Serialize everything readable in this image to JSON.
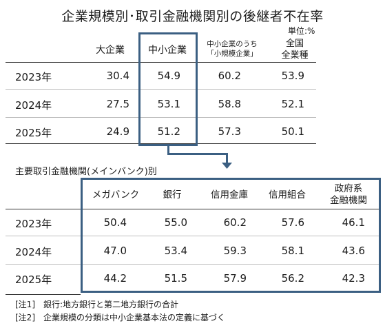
{
  "title": "企業規模別･取引金融機関別の後継者不在率",
  "unit": "単位:%",
  "table1": {
    "columns": [
      "大企業",
      "中小企業",
      "中小企業のうち",
      "「小規模企業」",
      "全国",
      "全業種"
    ],
    "rows": [
      {
        "year": "2023年",
        "values": [
          "30.4",
          "54.9",
          "60.2",
          "53.9"
        ]
      },
      {
        "year": "2024年",
        "values": [
          "27.5",
          "53.1",
          "58.8",
          "52.1"
        ]
      },
      {
        "year": "2025年",
        "values": [
          "24.9",
          "51.2",
          "57.3",
          "50.1"
        ]
      }
    ]
  },
  "table2": {
    "subtitle": "主要取引金融機関(メインバンク)別",
    "columns": [
      "メガバンク",
      "銀行",
      "信用金庫",
      "信用組合",
      "政府系",
      "金融機関"
    ],
    "rows": [
      {
        "year": "2023年",
        "values": [
          "50.4",
          "55.0",
          "60.2",
          "57.6",
          "46.1"
        ]
      },
      {
        "year": "2024年",
        "values": [
          "47.0",
          "53.4",
          "59.3",
          "58.1",
          "43.6"
        ]
      },
      {
        "year": "2025年",
        "values": [
          "44.2",
          "51.5",
          "57.9",
          "56.2",
          "42.3"
        ]
      }
    ]
  },
  "notes": [
    "[注1]　銀行:地方銀行と第二地方銀行の合計",
    "[注2]　企業規模の分類は中小企業基本法の定義に基づく"
  ],
  "colors": {
    "accent_box": "#3b5f82",
    "rule": "#333333",
    "light_rule": "#bdbdbd"
  }
}
